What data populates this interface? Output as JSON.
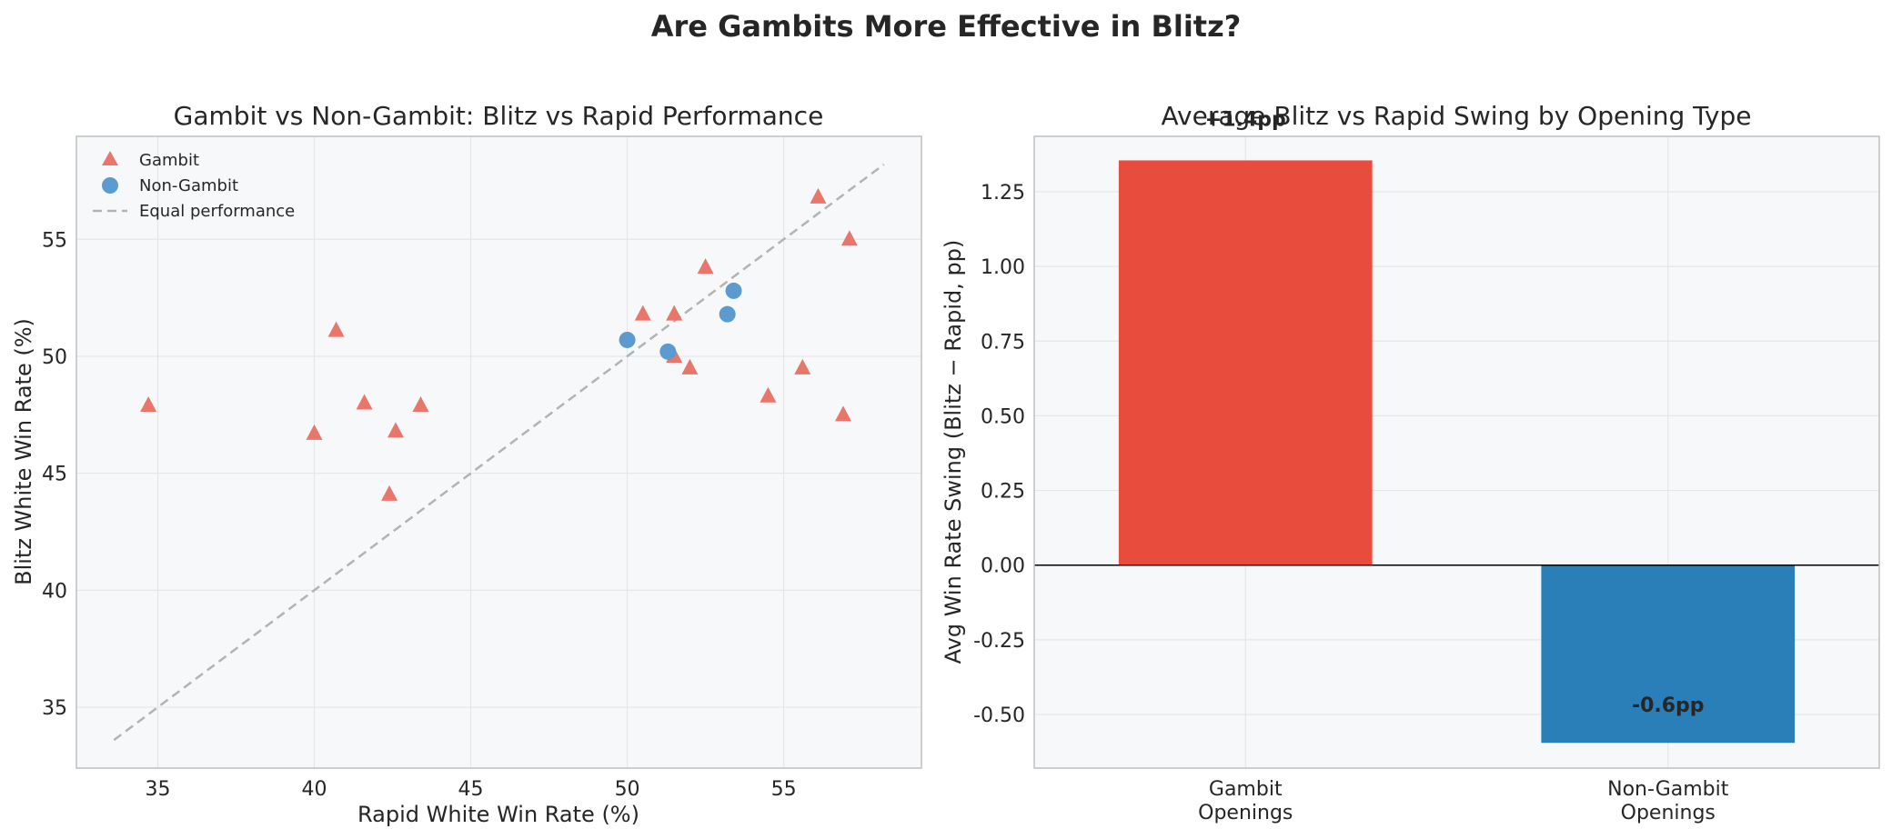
{
  "figure": {
    "title": "Are Gambits More Effective in Blitz?"
  },
  "colors": {
    "gambit": "#e8766b",
    "non_gambit": "#5b9bcf",
    "equal_line": "#b3b3b3",
    "bar_gambit": "#e74c3c",
    "bar_non_gambit": "#2a7fb8",
    "plot_bg": "#f7f8fa",
    "grid": "#e6e6e6",
    "frame": "#bfbfbf"
  },
  "chart_data": [
    {
      "type": "scatter",
      "title": "Gambit vs Non-Gambit: Blitz vs Rapid Performance",
      "xlabel": "Rapid White Win Rate (%)",
      "ylabel": "Blitz White Win Rate (%)",
      "xlim": [
        32.4,
        59.4
      ],
      "ylim": [
        32.4,
        59.4
      ],
      "xticks": [
        35,
        40,
        45,
        50,
        55
      ],
      "yticks": [
        35,
        40,
        45,
        50,
        55
      ],
      "grid": true,
      "legend_position": "top-left",
      "series": [
        {
          "name": "Gambit",
          "marker": "triangle",
          "points": [
            {
              "x": 34.7,
              "y": 47.9
            },
            {
              "x": 40.0,
              "y": 46.7
            },
            {
              "x": 40.7,
              "y": 51.1
            },
            {
              "x": 41.6,
              "y": 48.0
            },
            {
              "x": 42.4,
              "y": 44.1
            },
            {
              "x": 42.6,
              "y": 46.8
            },
            {
              "x": 43.4,
              "y": 47.9
            },
            {
              "x": 50.5,
              "y": 51.8
            },
            {
              "x": 51.5,
              "y": 51.8
            },
            {
              "x": 51.5,
              "y": 50.0
            },
            {
              "x": 52.0,
              "y": 49.5
            },
            {
              "x": 52.5,
              "y": 53.8
            },
            {
              "x": 54.5,
              "y": 48.3
            },
            {
              "x": 55.6,
              "y": 49.5
            },
            {
              "x": 56.1,
              "y": 56.8
            },
            {
              "x": 56.9,
              "y": 47.5
            },
            {
              "x": 57.1,
              "y": 55.0
            }
          ]
        },
        {
          "name": "Non-Gambit",
          "marker": "circle",
          "points": [
            {
              "x": 50.0,
              "y": 50.7
            },
            {
              "x": 51.3,
              "y": 50.2
            },
            {
              "x": 53.2,
              "y": 51.8
            },
            {
              "x": 53.4,
              "y": 52.8
            }
          ]
        }
      ],
      "reference_line": {
        "name": "Equal performance",
        "from": [
          33.6,
          33.6
        ],
        "to": [
          58.2,
          58.2
        ]
      }
    },
    {
      "type": "bar",
      "title": "Average Blitz vs Rapid Swing by Opening Type",
      "xlabel": "",
      "ylabel": "Avg Win Rate Swing (Blitz − Rapid, pp)",
      "ylim": [
        -0.6795,
        1.4355
      ],
      "yticks": [
        -0.5,
        -0.25,
        0.0,
        0.25,
        0.5,
        0.75,
        1.0,
        1.25
      ],
      "ytick_labels": [
        "-0.50",
        "-0.25",
        "0.00",
        "0.25",
        "0.50",
        "0.75",
        "1.00",
        "1.25"
      ],
      "grid": true,
      "categories": [
        [
          "Gambit",
          "Openings"
        ],
        [
          "Non-Gambit",
          "Openings"
        ]
      ],
      "values": [
        1.355,
        -0.595
      ],
      "value_labels": [
        "+1.4pp",
        "-0.6pp"
      ]
    }
  ]
}
